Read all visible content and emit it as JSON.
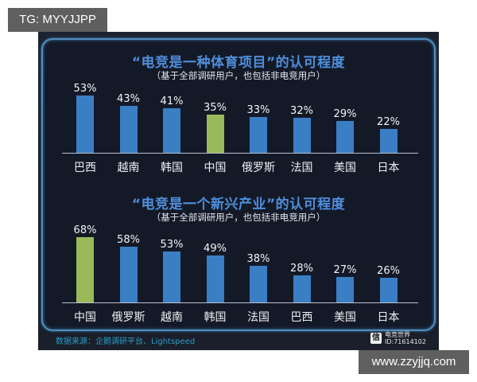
{
  "watermarks": {
    "top_left": "TG: MYYJJPP",
    "bottom_right": "www.zzyjjq.com"
  },
  "colors": {
    "bar_default": "#3a7ec4",
    "bar_highlight": "#9ab95a",
    "title": "#4d8fdc",
    "frame_border": "#4f8fc0",
    "background": "#141927",
    "source_text": "#2a9dc4"
  },
  "footer": {
    "source": "数据来源：企鹅调研平台、Lightspeed",
    "logo_icon": "信",
    "logo_name": "电竞世界",
    "logo_id": "ID:71614102"
  },
  "chart_data": [
    {
      "type": "bar",
      "title": "“电竞是一种体育项目”的认可程度",
      "subtitle": "（基于全部调研用户，也包括非电竞用户）",
      "categories": [
        "巴西",
        "越南",
        "韩国",
        "中国",
        "俄罗斯",
        "法国",
        "美国",
        "日本"
      ],
      "values": [
        53,
        43,
        41,
        35,
        33,
        32,
        29,
        22
      ],
      "labels": [
        "53%",
        "43%",
        "41%",
        "35%",
        "33%",
        "32%",
        "29%",
        "22%"
      ],
      "highlight": "中国",
      "xlabel": "",
      "ylabel": "",
      "ylim": [
        0,
        60
      ],
      "grid": false,
      "legend": "none"
    },
    {
      "type": "bar",
      "title": "“电竞是一个新兴产业”的认可程度",
      "subtitle": "（基于全部调研用户，也包括非电竞用户）",
      "categories": [
        "中国",
        "俄罗斯",
        "越南",
        "韩国",
        "法国",
        "巴西",
        "美国",
        "日本"
      ],
      "values": [
        68,
        58,
        53,
        49,
        38,
        28,
        27,
        26
      ],
      "labels": [
        "68%",
        "58%",
        "53%",
        "49%",
        "38%",
        "28%",
        "27%",
        "26%"
      ],
      "highlight": "中国",
      "xlabel": "",
      "ylabel": "",
      "ylim": [
        0,
        75
      ],
      "grid": false,
      "legend": "none"
    }
  ]
}
